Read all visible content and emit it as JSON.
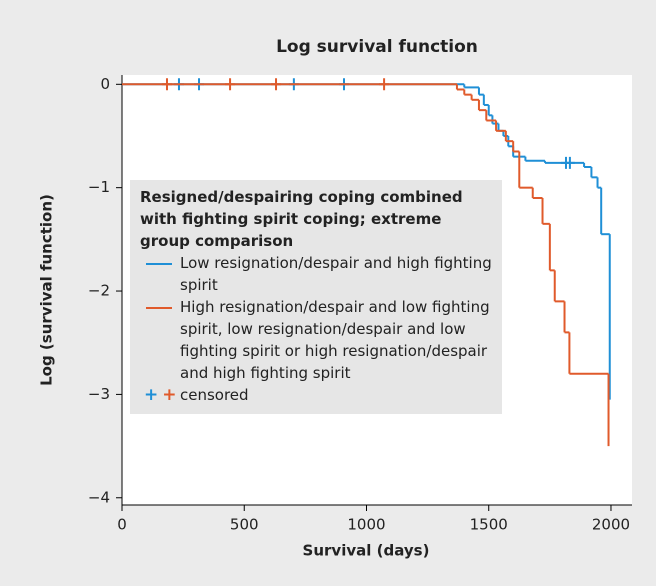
{
  "chart_data": {
    "type": "step",
    "title": "Log survival function",
    "x_label": "Survival (days)",
    "y_label": "Log (survival function)",
    "legend_title": "Resigned/despairing coping combined with fighting spirit coping; extreme group comparison",
    "censored_label": "censored",
    "xlim": [
      0,
      2086
    ],
    "ylim": [
      -4.07,
      0.09
    ],
    "xticks": [
      0,
      500,
      1000,
      1500,
      2000
    ],
    "yticks": [
      0,
      {
        "value": -1,
        "label": "−1"
      },
      {
        "value": -2,
        "label": "−2"
      },
      {
        "value": -3,
        "label": "−3"
      },
      {
        "value": -4,
        "label": "−4"
      }
    ],
    "series": [
      {
        "name": "Low resignation/despair and high fighting spirit",
        "color": "#1f8fd6",
        "x": [
          0,
          1400,
          1460,
          1480,
          1500,
          1515,
          1540,
          1560,
          1580,
          1600,
          1650,
          1730,
          1890,
          1920,
          1945,
          1960,
          1995
        ],
        "values": [
          0,
          -0.03,
          -0.1,
          -0.2,
          -0.3,
          -0.38,
          -0.45,
          -0.5,
          -0.6,
          -0.7,
          -0.74,
          -0.76,
          -0.8,
          -0.9,
          -1.0,
          -1.45,
          -3.05
        ],
        "censored_x": [
          233,
          315,
          703,
          908,
          1816,
          1832
        ],
        "censored_y": [
          0,
          0,
          0,
          0,
          -0.76,
          -0.76
        ]
      },
      {
        "name": "High resignation/despair and low fighting spirit, low resignation/despair and low fighting spirit or high resignation/despair and high fighting spirit",
        "color": "#e05a2b",
        "x": [
          0,
          1370,
          1400,
          1430,
          1460,
          1490,
          1530,
          1570,
          1600,
          1625,
          1680,
          1720,
          1750,
          1770,
          1810,
          1830,
          1990
        ],
        "values": [
          0,
          -0.05,
          -0.1,
          -0.15,
          -0.25,
          -0.35,
          -0.45,
          -0.55,
          -0.65,
          -1.0,
          -1.1,
          -1.35,
          -1.8,
          -2.1,
          -2.4,
          -2.8,
          -3.5
        ],
        "censored_x": [
          184,
          442,
          630,
          1072
        ],
        "censored_y": [
          0,
          0,
          0,
          0
        ]
      }
    ]
  }
}
